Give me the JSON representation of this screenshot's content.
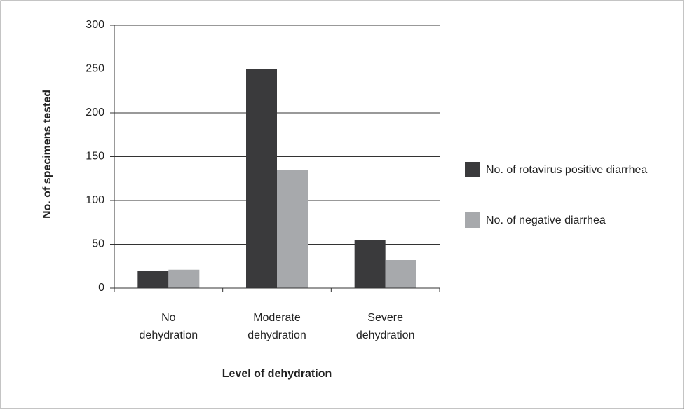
{
  "chart_data": {
    "type": "bar",
    "x_label": "Level of dehydration",
    "y_label": "No. of specimens tested",
    "categories": [
      "No dehydration",
      "Moderate dehydration",
      "Severe dehydration"
    ],
    "series": [
      {
        "name": "No. of rotavirus positive diarrhea",
        "color": "#3a3a3c",
        "values": [
          20,
          250,
          55
        ]
      },
      {
        "name": "No. of negative diarrhea",
        "color": "#a7a9ac",
        "values": [
          21,
          135,
          32
        ]
      }
    ],
    "ylim": [
      0,
      300
    ],
    "yticks": [
      0,
      50,
      100,
      150,
      200,
      250,
      300
    ],
    "grid": true,
    "legend": "right"
  }
}
